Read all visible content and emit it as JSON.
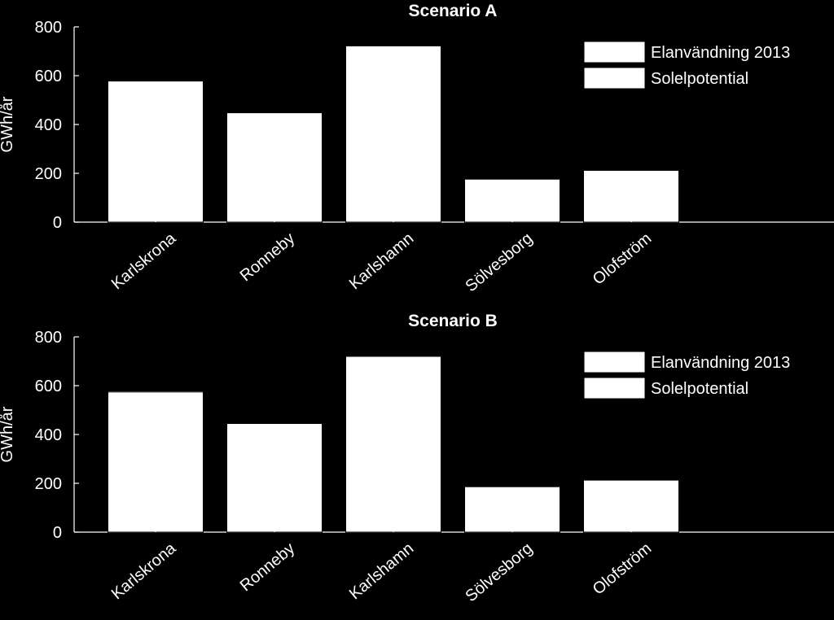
{
  "colors": {
    "background": "#000000",
    "foreground": "#ffffff",
    "bar_fill": "#ffffff",
    "bar_edge": "#000000"
  },
  "chart_data": [
    {
      "type": "bar",
      "title": "Scenario A",
      "xlabel": "",
      "ylabel": "GWh/år",
      "ylim": [
        0,
        800
      ],
      "yticks": [
        "0",
        "200",
        "400",
        "600",
        "800"
      ],
      "categories": [
        "Karlskrona",
        "Ronneby",
        "Karlshamn",
        "Sölvesborg",
        "Olofström"
      ],
      "grouping": "overlaid",
      "series": [
        {
          "name": "Elanvändning 2013",
          "values": [
            578,
            448,
            722,
            176,
            212
          ]
        },
        {
          "name": "Solelpotential",
          "values": [
            578,
            448,
            722,
            176,
            212
          ]
        }
      ],
      "legend_position": "top-right",
      "grid": false
    },
    {
      "type": "bar",
      "title": "Scenario B",
      "xlabel": "",
      "ylabel": "GWh/år",
      "ylim": [
        0,
        800
      ],
      "yticks": [
        "0",
        "200",
        "400",
        "600",
        "800"
      ],
      "categories": [
        "Karlskrona",
        "Ronneby",
        "Karlshamn",
        "Sölvesborg",
        "Olofström"
      ],
      "grouping": "overlaid",
      "series": [
        {
          "name": "Elanvändning 2013",
          "values": [
            578,
            448,
            722,
            176,
            212
          ]
        },
        {
          "name": "Solelpotential",
          "values": [
            574,
            445,
            720,
            186,
            213
          ]
        }
      ],
      "legend_position": "top-right",
      "grid": false
    }
  ]
}
